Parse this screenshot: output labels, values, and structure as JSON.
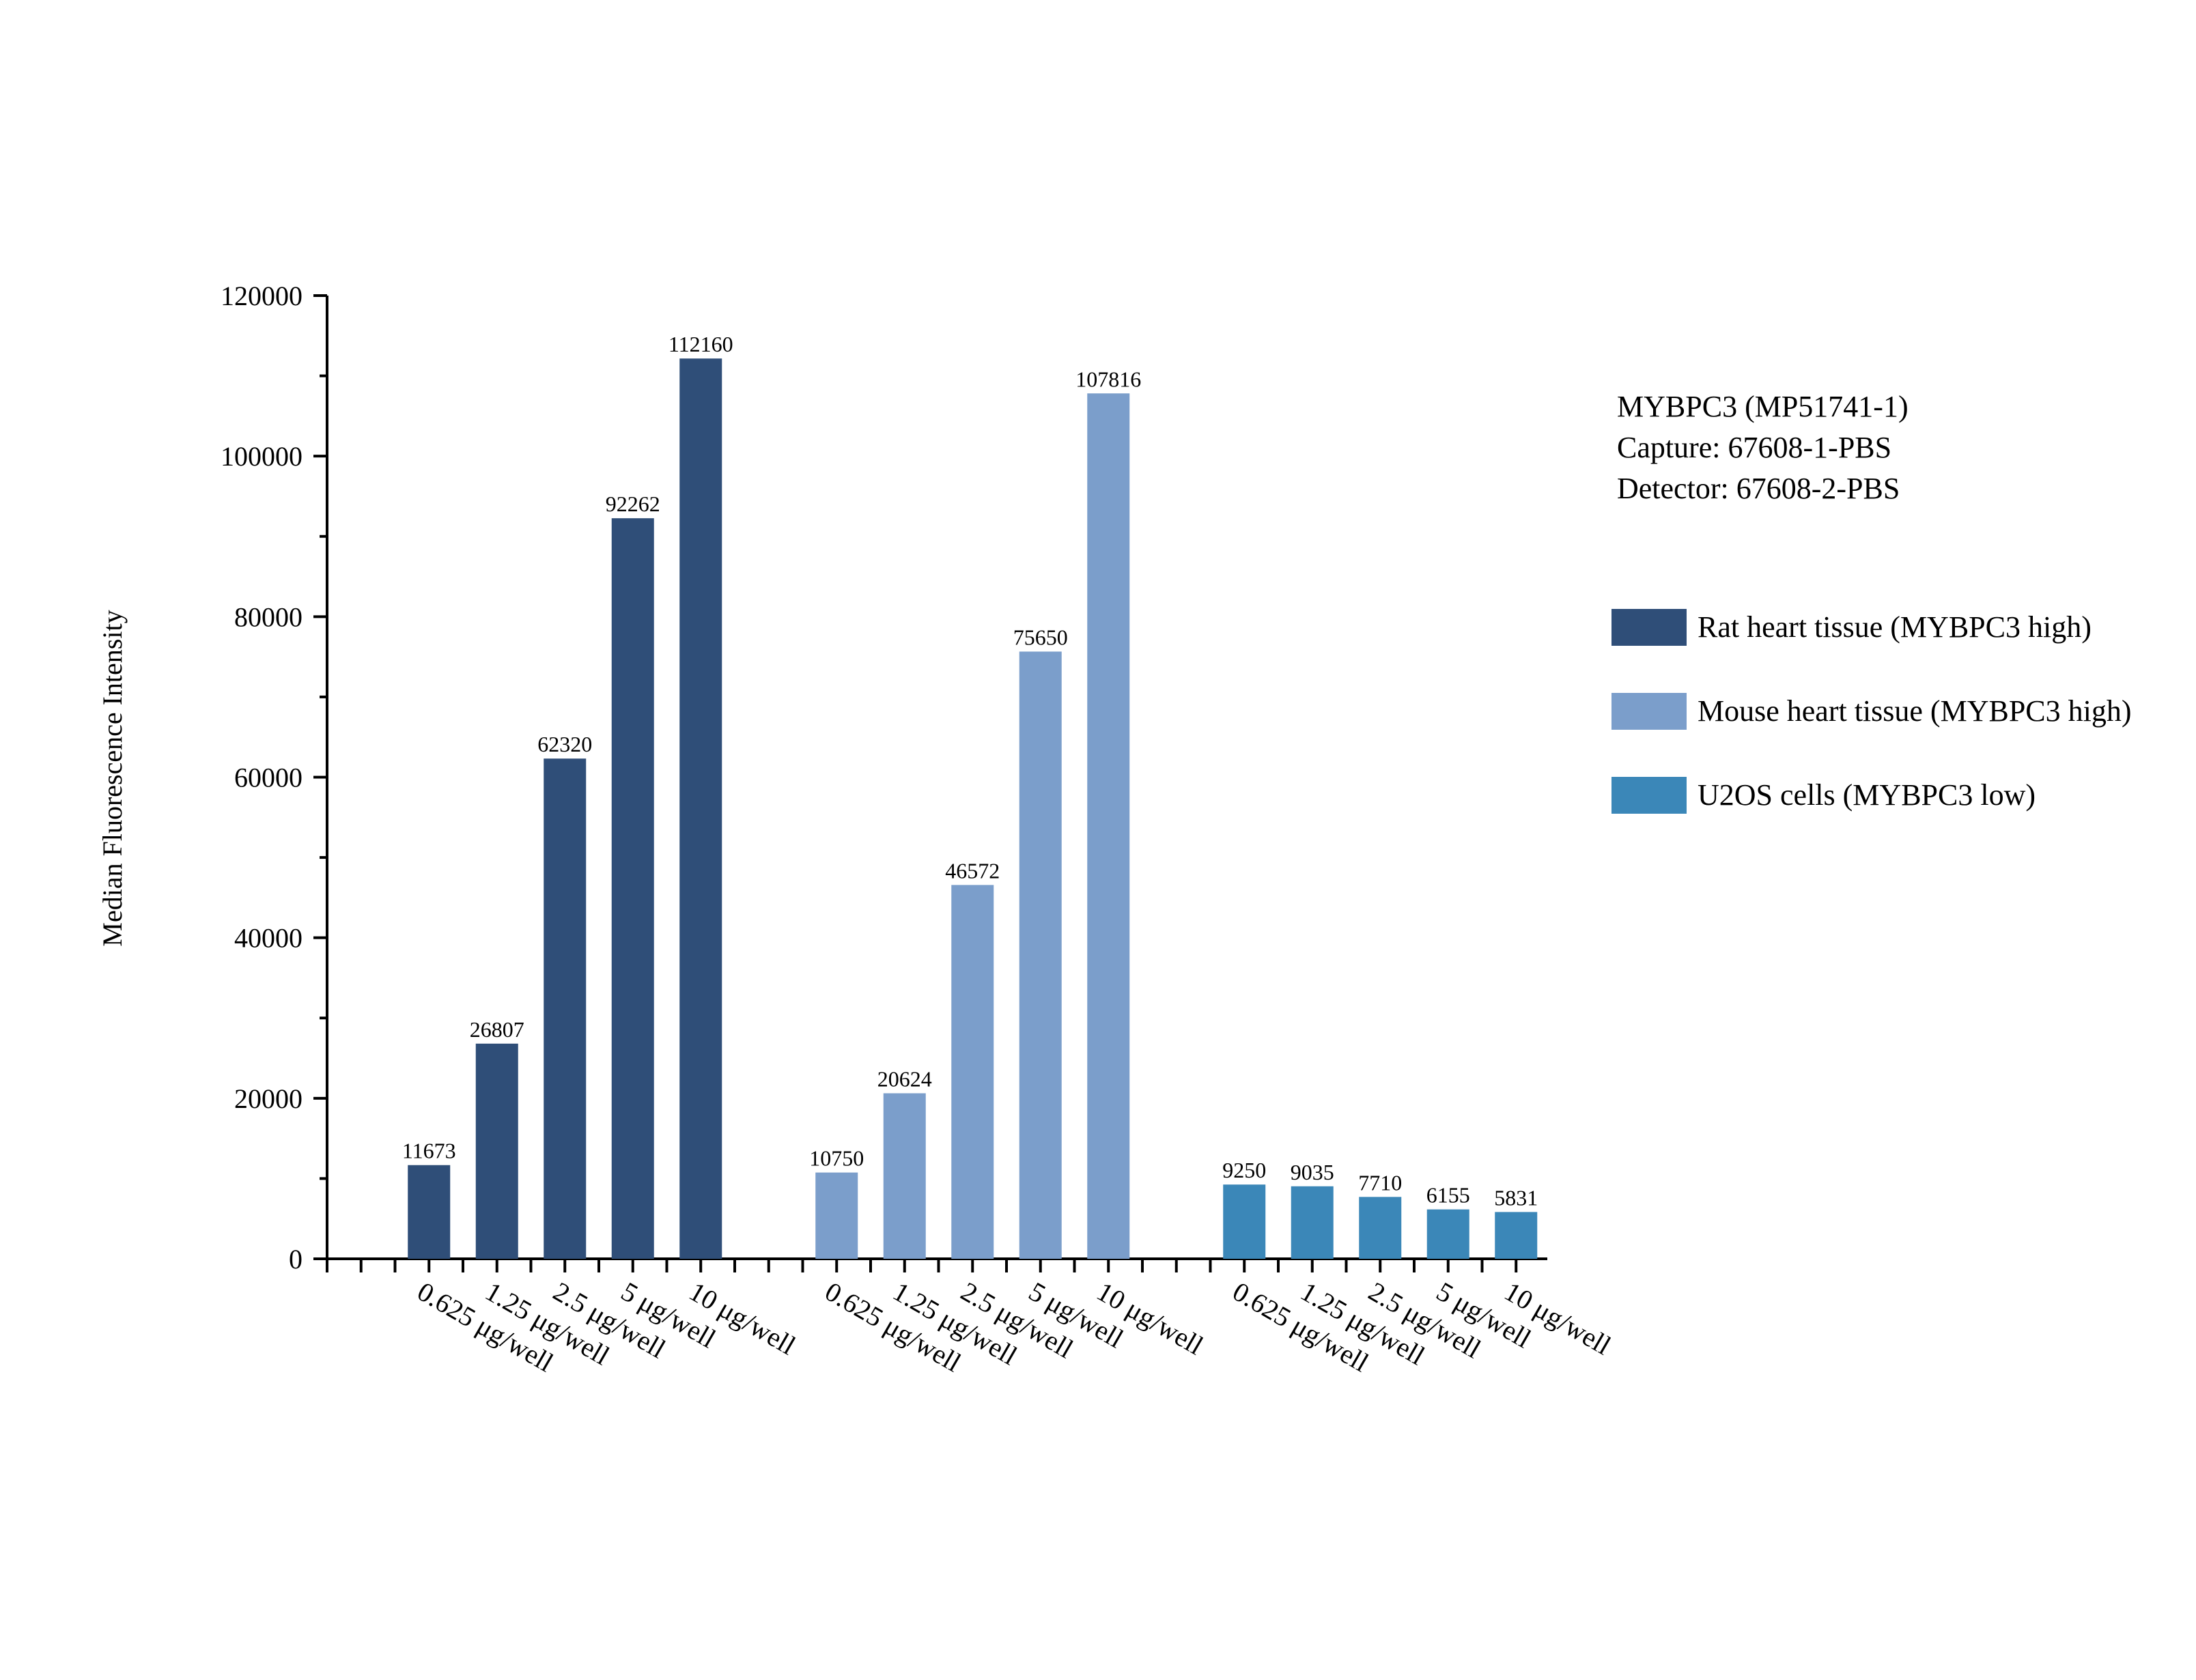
{
  "chart_data": {
    "type": "bar",
    "title": "",
    "xlabel": "",
    "ylabel": "Median Fluorescence Intensity",
    "ylim": [
      0,
      120000
    ],
    "yticks": [
      0,
      20000,
      40000,
      60000,
      80000,
      100000,
      120000
    ],
    "grid": false,
    "legend_position": "right",
    "info_lines": [
      "MYBPC3 (MP51741-1)",
      "Capture: 67608-1-PBS",
      "Detector: 67608-2-PBS"
    ],
    "categories": [
      "0.625 μg/well",
      "1.25 μg/well",
      "2.5 μg/well",
      "5 μg/well",
      "10 μg/well"
    ],
    "series": [
      {
        "name": "Rat heart tissue (MYBPC3 high)",
        "color": "#2f4e78",
        "values": [
          11673,
          26807,
          62320,
          92262,
          112160
        ]
      },
      {
        "name": "Mouse heart tissue (MYBPC3 high)",
        "color": "#7b9ecb",
        "values": [
          10750,
          20624,
          46572,
          75650,
          107816
        ]
      },
      {
        "name": "U2OS cells (MYBPC3 low)",
        "color": "#3b87b8",
        "values": [
          9250,
          9035,
          7710,
          6155,
          5831
        ]
      }
    ]
  }
}
